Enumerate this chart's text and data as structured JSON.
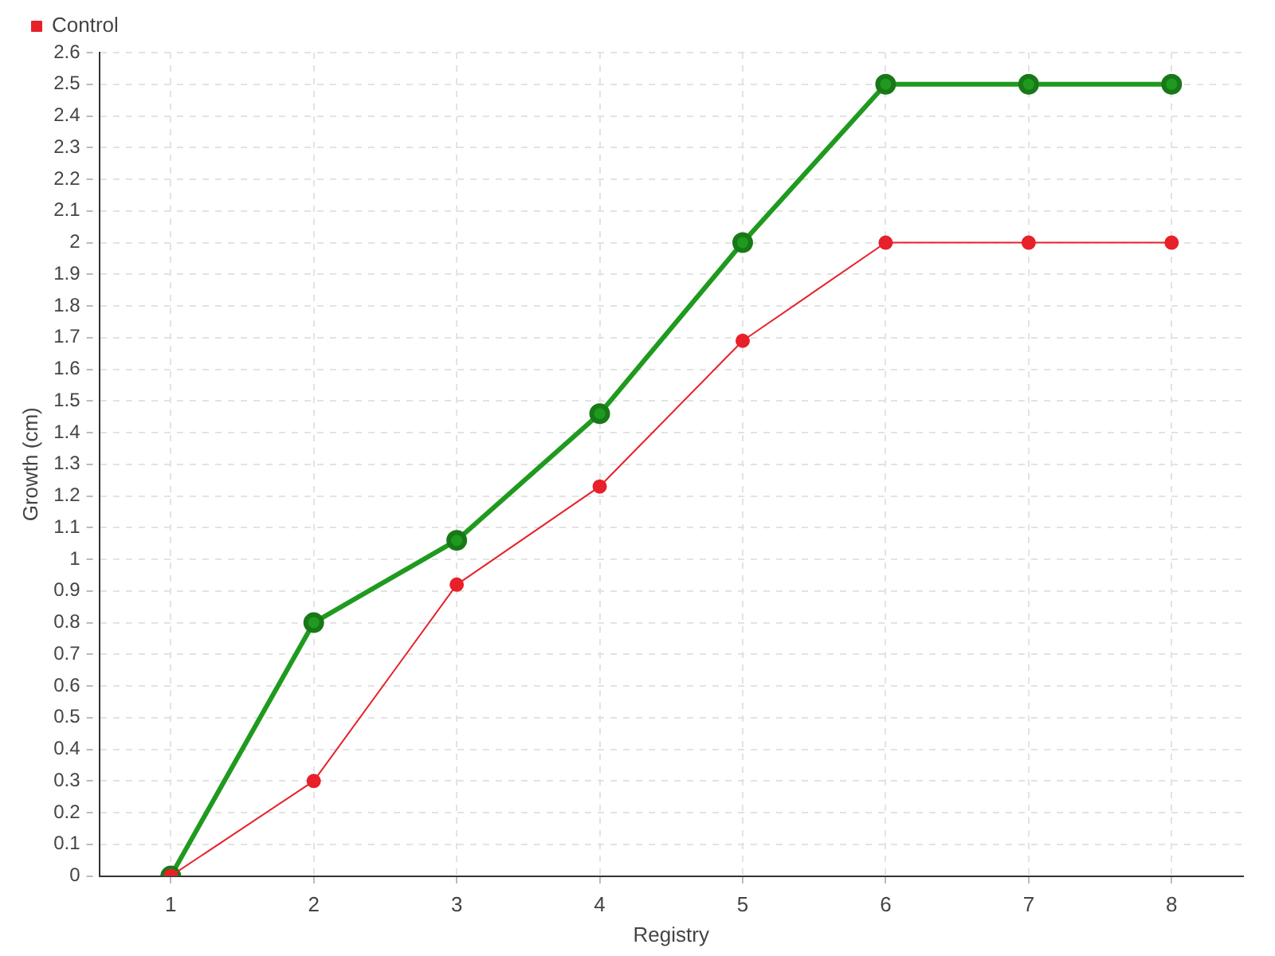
{
  "chart_data": {
    "type": "line",
    "xlabel": "Registry",
    "ylabel": "Growth (cm)",
    "x": [
      1,
      2,
      3,
      4,
      5,
      6,
      7,
      8
    ],
    "xlim": [
      0.5,
      8.5
    ],
    "xticks": [
      1,
      2,
      3,
      4,
      5,
      6,
      7,
      8
    ],
    "ylim": [
      0,
      2.6
    ],
    "yticks": [
      0,
      0.1,
      0.2,
      0.3,
      0.4,
      0.5,
      0.6,
      0.7,
      0.8,
      0.9,
      1,
      1.1,
      1.2,
      1.3,
      1.4,
      1.5,
      1.6,
      1.7,
      1.8,
      1.9,
      2,
      2.1,
      2.2,
      2.3,
      2.4,
      2.5,
      2.6
    ],
    "series": [
      {
        "color": "#1f9a1f",
        "values": [
          0,
          0.8,
          1.06,
          1.46,
          2.0,
          2.5,
          2.5,
          2.5
        ]
      },
      {
        "name": "Control",
        "color": "#e8202a",
        "values": [
          0,
          0.3,
          0.92,
          1.23,
          1.69,
          2.0,
          2.0,
          2.0
        ]
      }
    ],
    "grid": true,
    "legend": "top left",
    "marker": "circle",
    "line_style": "solid"
  }
}
